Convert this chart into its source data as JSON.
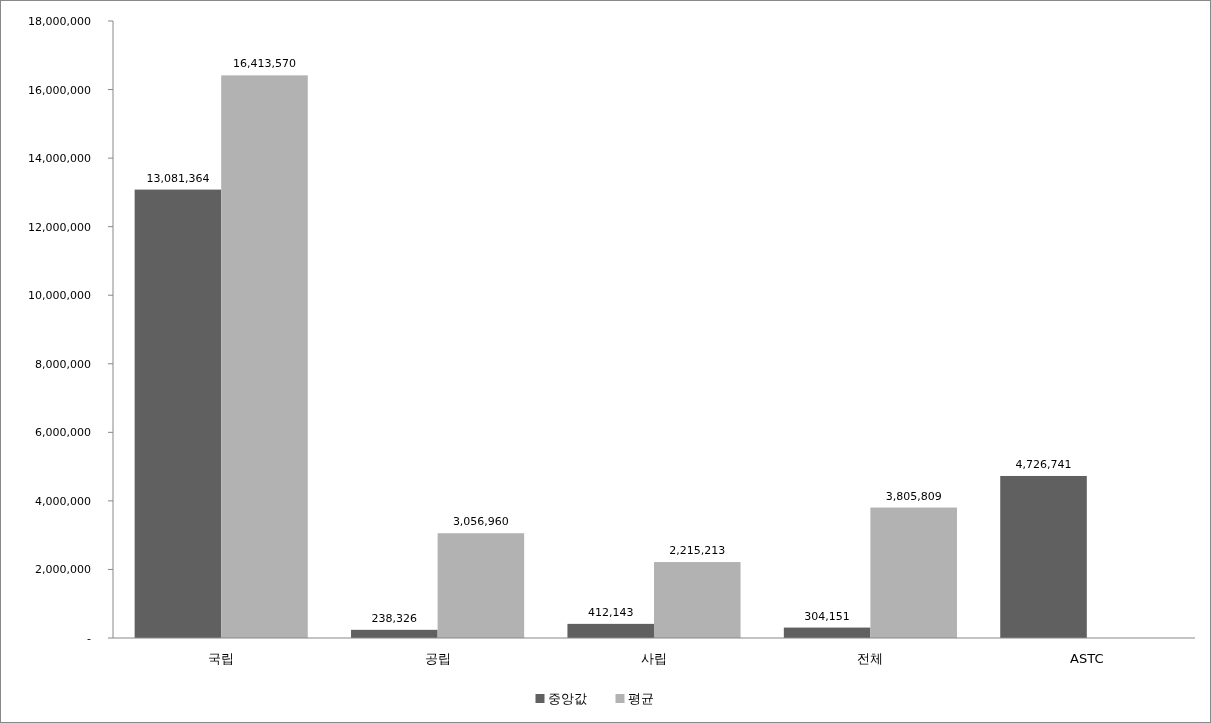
{
  "chart_data": {
    "type": "bar",
    "categories": [
      "국립",
      "공립",
      "사립",
      "전체",
      "ASTC"
    ],
    "series": [
      {
        "name": "중앙값",
        "color": "#606060",
        "values": [
          13081364,
          238326,
          412143,
          304151,
          4726741
        ],
        "value_labels": [
          "13,081,364",
          "238,326",
          "412,143",
          "304,151",
          "4,726,741"
        ]
      },
      {
        "name": "평균",
        "color": "#b2b2b2",
        "values": [
          16413570,
          3056960,
          2215213,
          3805809,
          null
        ],
        "value_labels": [
          "16,413,570",
          "3,056,960",
          "2,215,213",
          "3,805,809",
          null
        ]
      }
    ],
    "ylim": [
      0,
      18000000
    ],
    "yticks": [
      {
        "value": 0,
        "label": "-"
      },
      {
        "value": 2000000,
        "label": "2,000,000"
      },
      {
        "value": 4000000,
        "label": "4,000,000"
      },
      {
        "value": 6000000,
        "label": "6,000,000"
      },
      {
        "value": 8000000,
        "label": "8,000,000"
      },
      {
        "value": 10000000,
        "label": "10,000,000"
      },
      {
        "value": 12000000,
        "label": "12,000,000"
      },
      {
        "value": 14000000,
        "label": "14,000,000"
      },
      {
        "value": 16000000,
        "label": "16,000,000"
      },
      {
        "value": 18000000,
        "label": "18,000,000"
      }
    ],
    "legend": "bottom",
    "grid": false
  }
}
